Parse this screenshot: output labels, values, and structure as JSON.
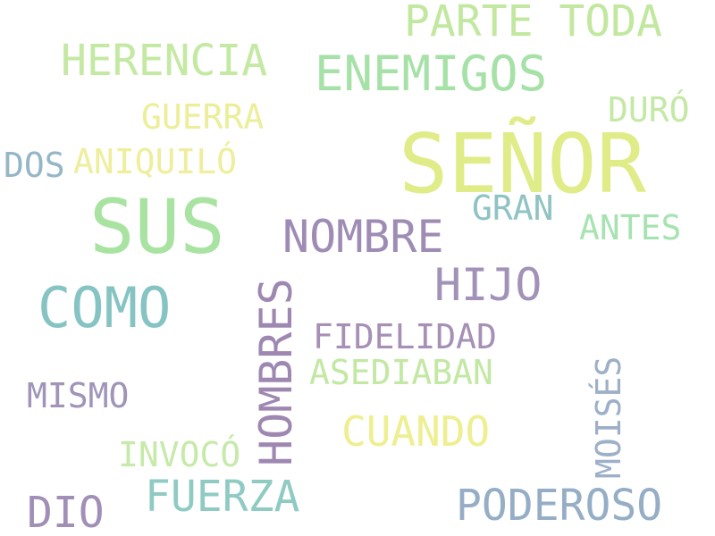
{
  "words": {
    "senor": {
      "text": "SEÑOR",
      "color": "#e0ec88"
    },
    "sus": {
      "text": "SUS",
      "color": "#a9e3a1"
    },
    "como": {
      "text": "COMO",
      "color": "#85c4c2"
    },
    "enemigos": {
      "text": "ENEMIGOS",
      "color": "#a6e1a8"
    },
    "parte_toda": {
      "text": "PARTE TODA",
      "color": "#c2e8a0"
    },
    "herencia": {
      "text": "HERENCIA",
      "color": "#c4e9a3"
    },
    "nombre": {
      "text": "NOMBRE",
      "color": "#9f8cb5"
    },
    "hijo": {
      "text": "HIJO",
      "color": "#a392b8"
    },
    "hombres": {
      "text": "HOMBRES",
      "color": "#9e88b2"
    },
    "cuando": {
      "text": "CUANDO",
      "color": "#eeef91"
    },
    "fuerza": {
      "text": "FUERZA",
      "color": "#8fcbc3"
    },
    "poderoso": {
      "text": "PODEROSO",
      "color": "#95aec6"
    },
    "dio": {
      "text": "DIO",
      "color": "#a18fb7"
    },
    "guerra": {
      "text": "GUERRA",
      "color": "#ecee99"
    },
    "aniquilo": {
      "text": "ANIQUILÓ",
      "color": "#eeee9c"
    },
    "dos": {
      "text": "DOS",
      "color": "#95b6c7"
    },
    "duro": {
      "text": "DURÓ",
      "color": "#c4e8a5"
    },
    "gran": {
      "text": "GRAN",
      "color": "#8fc3c4"
    },
    "antes": {
      "text": "ANTES",
      "color": "#a7e3b1"
    },
    "fidelidad": {
      "text": "FIDELIDAD",
      "color": "#a690b6"
    },
    "asediaban": {
      "text": "ASEDIABAN",
      "color": "#c2e8a3"
    },
    "mismo": {
      "text": "MISMO",
      "color": "#a194b8"
    },
    "invoco": {
      "text": "INVOCÓ",
      "color": "#c6eaa9"
    },
    "moises": {
      "text": "MOISÉS",
      "color": "#9eb0c8"
    }
  }
}
